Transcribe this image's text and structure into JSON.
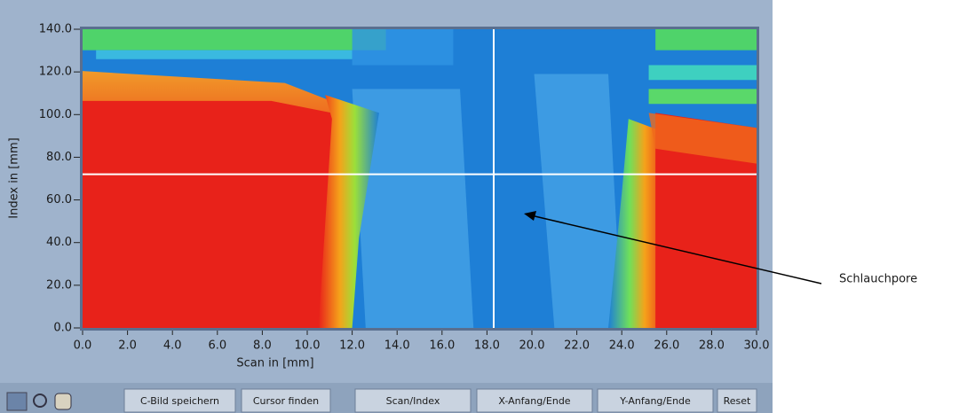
{
  "chart_data": {
    "type": "heatmap",
    "xlabel": "Scan in [mm]",
    "ylabel": "Index in [mm]",
    "xlim": [
      0,
      30
    ],
    "xticks": [
      {
        "value": 0,
        "label": "0.0"
      },
      {
        "value": 2,
        "label": "2.0"
      },
      {
        "value": 4,
        "label": "4.0"
      },
      {
        "value": 6,
        "label": "6.0"
      },
      {
        "value": 8,
        "label": "8.0"
      },
      {
        "value": 10,
        "label": "10.0"
      },
      {
        "value": 12,
        "label": "12.0"
      },
      {
        "value": 14,
        "label": "14.0"
      },
      {
        "value": 16,
        "label": "16.0"
      },
      {
        "value": 18,
        "label": "18.0"
      },
      {
        "value": 20,
        "label": "20.0"
      },
      {
        "value": 22,
        "label": "22.0"
      },
      {
        "value": 24,
        "label": "24.0"
      },
      {
        "value": 26,
        "label": "26.0"
      },
      {
        "value": 28,
        "label": "28.0"
      },
      {
        "value": 30,
        "label": "30.0"
      }
    ],
    "ylim": [
      0,
      140
    ],
    "yticks": [
      {
        "value": 0,
        "label": "0.0"
      },
      {
        "value": 20,
        "label": "20.0"
      },
      {
        "value": 40,
        "label": "40.0"
      },
      {
        "value": 60,
        "label": "60.0"
      },
      {
        "value": 80,
        "label": "80.0"
      },
      {
        "value": 100,
        "label": "100.0"
      },
      {
        "value": 120,
        "label": "120.0"
      },
      {
        "value": 140,
        "label": "140.0"
      }
    ],
    "cursor": {
      "x": 18.3,
      "y": 72
    }
  },
  "toolbar": {
    "buttons": [
      "C-Bild speichern",
      "Cursor finden",
      "Scan/Index",
      "X-Anfang/Ende",
      "Y-Anfang/Ende",
      "Reset"
    ]
  },
  "annotation": {
    "text": "Schlauchpore"
  }
}
